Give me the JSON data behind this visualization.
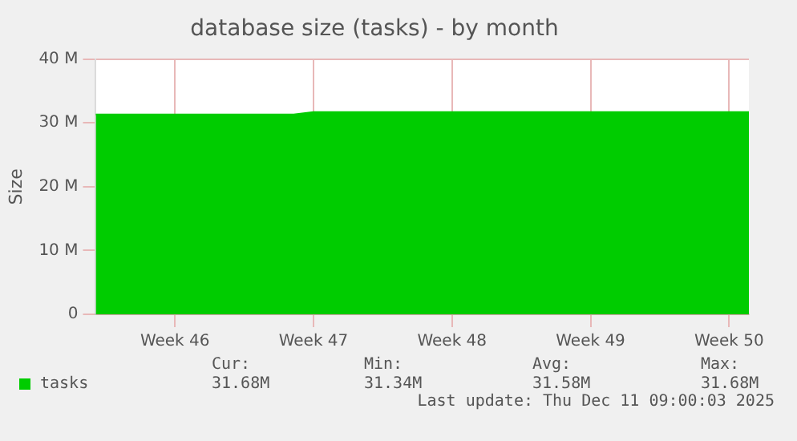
{
  "chart_data": {
    "type": "area",
    "title": "database size (tasks) - by month",
    "ylabel": "Size",
    "categories": [
      null,
      null,
      null,
      null,
      "Week 46",
      null,
      null,
      null,
      null,
      null,
      null,
      "Week 47",
      null,
      null,
      null,
      null,
      null,
      null,
      "Week 48",
      null,
      null,
      null,
      null,
      null,
      null,
      "Week 49",
      null,
      null,
      null,
      null,
      null,
      null,
      "Week 50",
      null
    ],
    "series": [
      {
        "name": "tasks",
        "color": "#00cc00",
        "values": [
          31.3,
          31.3,
          31.3,
          31.3,
          31.3,
          31.3,
          31.3,
          31.3,
          31.3,
          31.3,
          31.3,
          31.7,
          31.7,
          31.7,
          31.7,
          31.7,
          31.7,
          31.7,
          31.7,
          31.7,
          31.7,
          31.7,
          31.7,
          31.7,
          31.7,
          31.7,
          31.7,
          31.7,
          31.7,
          31.7,
          31.7,
          31.7,
          31.7,
          31.7
        ]
      }
    ],
    "ylim": [
      0,
      40
    ],
    "yticks": [
      0,
      {
        "value": 10,
        "label": "10 M"
      },
      {
        "value": 20,
        "label": "20 M"
      },
      {
        "value": 30,
        "label": "30 M"
      },
      {
        "value": 40,
        "label": "40 M"
      }
    ],
    "grid": true,
    "legend": "bottom left",
    "annotations": [
      "Cur:",
      "Min:",
      "Avg:",
      "Max:",
      "31.68M",
      "31.34M",
      "31.58M",
      "31.68M",
      "Last update: Thu Dec 11 09:00:03 2025"
    ]
  }
}
